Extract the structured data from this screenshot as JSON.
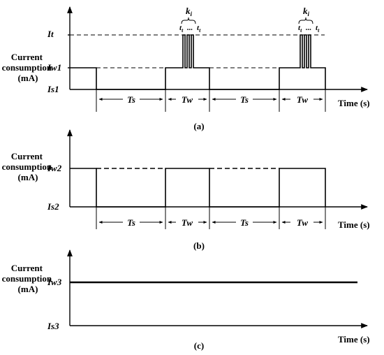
{
  "panel_a": {
    "ylabel": [
      "Current",
      "consumption",
      "(mA)"
    ],
    "levels": {
      "it": "It",
      "iw": "Iw1",
      "is": "Is1"
    },
    "segments": [
      "Ts",
      "Tw",
      "Ts",
      "Tw"
    ],
    "xlabel": "Time (s)",
    "pulse_count_label": "k",
    "pulse_count_sub": "i",
    "pulse_width_label": "t",
    "pulse_width_sub": "t",
    "ellipsis": "...",
    "caption": "(a)"
  },
  "panel_b": {
    "ylabel": [
      "Current",
      "consumption",
      "(mA)"
    ],
    "levels": {
      "iw": "Iw2",
      "is": "Is2"
    },
    "segments": [
      "Ts",
      "Tw",
      "Ts",
      "Tw"
    ],
    "xlabel": "Time (s)",
    "caption": "(b)"
  },
  "panel_c": {
    "ylabel": [
      "Current",
      "consumption",
      "(mA)"
    ],
    "levels": {
      "iw": "Iw3",
      "is": "Is3"
    },
    "xlabel": "Time (s)",
    "caption": "(c)"
  }
}
